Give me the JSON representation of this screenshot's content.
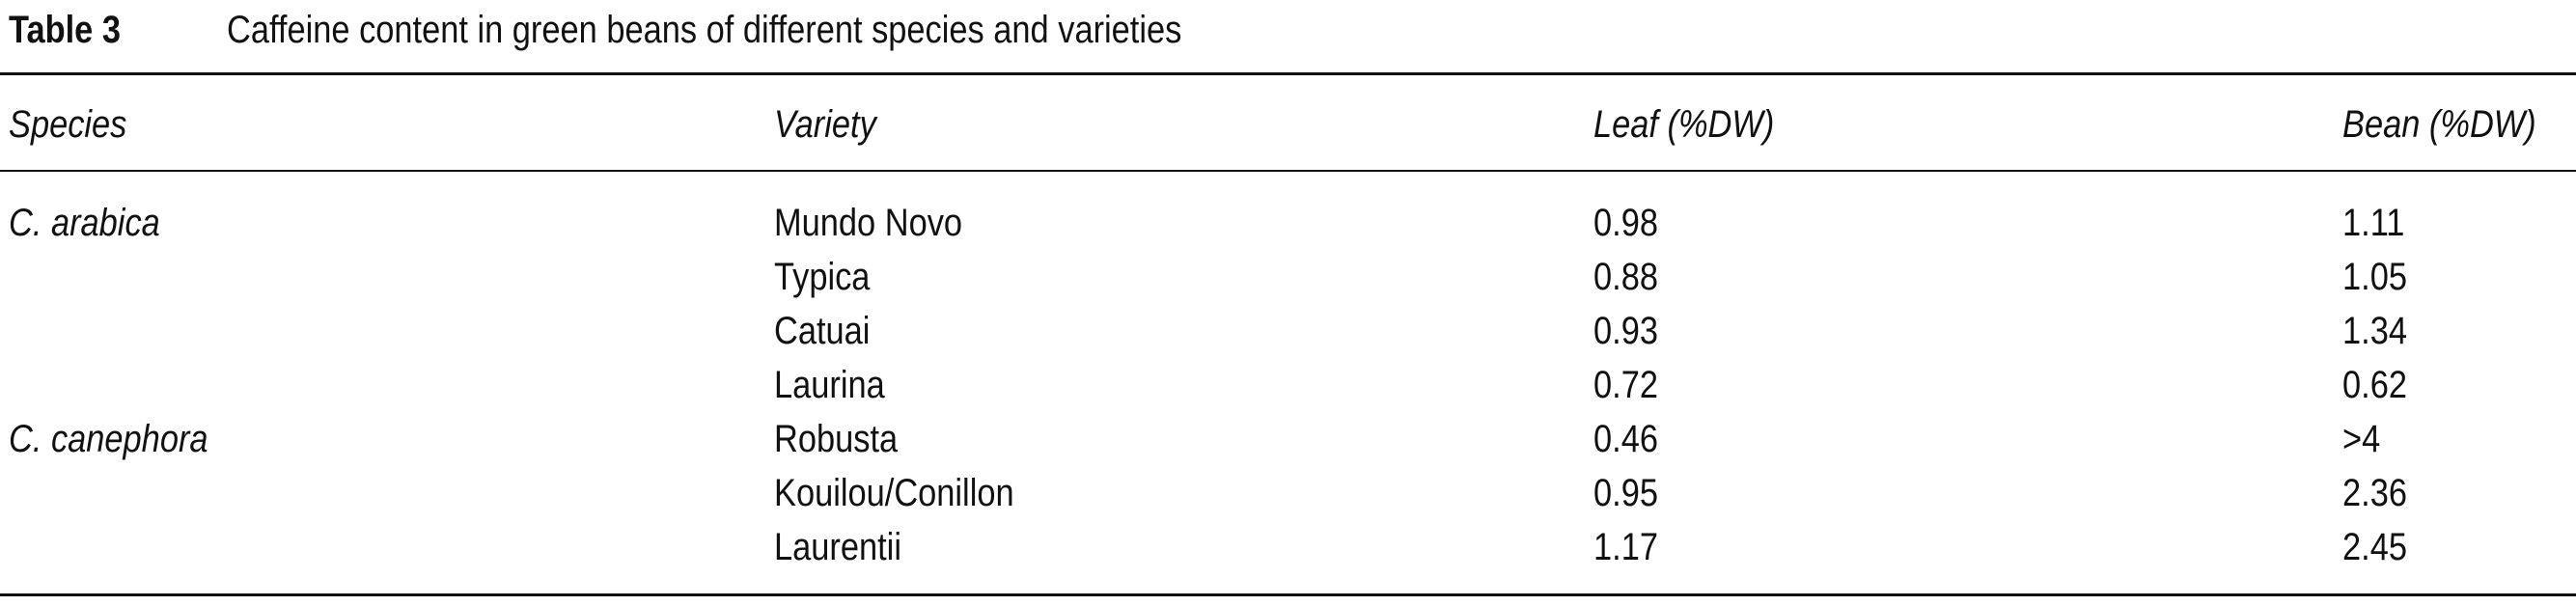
{
  "table": {
    "label": "Table 3",
    "caption": "Caffeine content in green beans of different species and varieties",
    "columns": [
      "Species",
      "Variety",
      "Leaf (%DW)",
      "Bean (%DW)"
    ],
    "groups": [
      {
        "species": "C. arabica",
        "rows": [
          {
            "variety": "Mundo Novo",
            "leaf": 0.98,
            "bean": 1.11
          },
          {
            "variety": "Typica",
            "leaf": 0.88,
            "bean": 1.05
          },
          {
            "variety": "Catuai",
            "leaf": 0.93,
            "bean": 1.34
          },
          {
            "variety": "Laurina",
            "leaf": 0.72,
            "bean": 0.62
          }
        ]
      },
      {
        "species": "C. canephora",
        "rows": [
          {
            "variety": "Robusta",
            "leaf": 0.46,
            "bean": ">4"
          },
          {
            "variety": "Kouilou/Conillon",
            "leaf": 0.95,
            "bean": 2.36
          },
          {
            "variety": "Laurentii",
            "leaf": 1.17,
            "bean": 2.45
          }
        ]
      }
    ]
  }
}
